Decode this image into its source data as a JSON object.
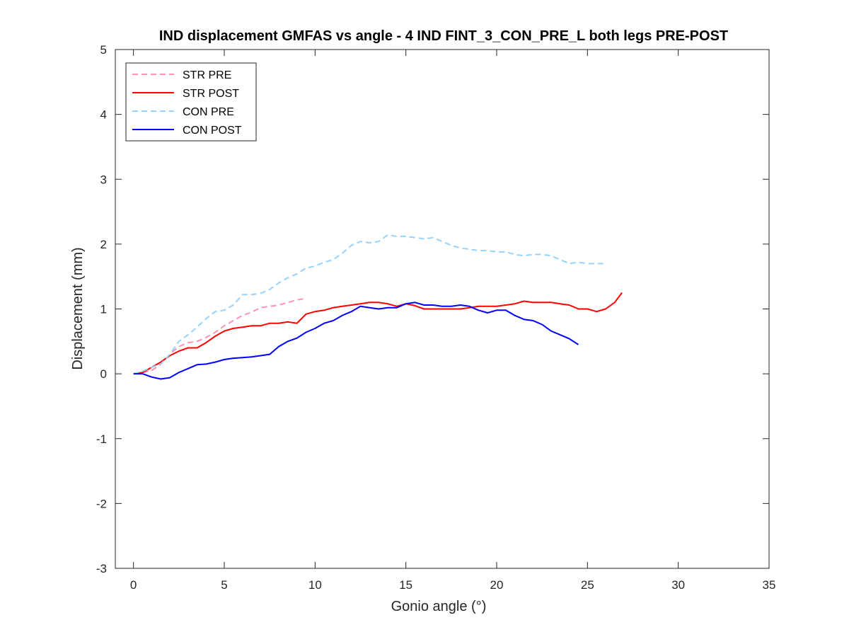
{
  "chart_data": {
    "type": "line",
    "title": "IND displacement GMFAS vs angle - 4 IND FINT_3_CON_PRE_L both legs PRE-POST",
    "xlabel": "Gonio angle (°)",
    "ylabel": "Displacement (mm)",
    "xlim": [
      -1,
      35
    ],
    "ylim": [
      -3,
      5
    ],
    "xticks": [
      0,
      5,
      10,
      15,
      20,
      25,
      30,
      35
    ],
    "yticks": [
      -3,
      -2,
      -1,
      0,
      1,
      2,
      3,
      4,
      5
    ],
    "xtick_labels": [
      "0",
      "5",
      "10",
      "15",
      "20",
      "25",
      "30",
      "35"
    ],
    "ytick_labels": [
      "-3",
      "-2",
      "-1",
      "0",
      "1",
      "2",
      "3",
      "4",
      "5"
    ],
    "grid": false,
    "legend_position": "top-left",
    "series": [
      {
        "name": "STR PRE",
        "color": "#ff91b4",
        "dash": true,
        "x": [
          0,
          0.5,
          1.0,
          1.5,
          2.0,
          2.5,
          3.0,
          3.5,
          4.0,
          4.5,
          5.0,
          5.5,
          6.0,
          6.5,
          7.0,
          7.5,
          8.0,
          8.5,
          9.0,
          9.5
        ],
        "y": [
          0,
          0.02,
          0.05,
          0.15,
          0.3,
          0.42,
          0.48,
          0.5,
          0.56,
          0.64,
          0.74,
          0.82,
          0.9,
          0.95,
          1.02,
          1.04,
          1.06,
          1.1,
          1.14,
          1.16
        ]
      },
      {
        "name": "STR POST",
        "color": "#ff0000",
        "dash": false,
        "x": [
          0,
          0.5,
          1.0,
          1.5,
          2.0,
          2.5,
          3.0,
          3.5,
          4.0,
          4.5,
          5.0,
          5.5,
          6.0,
          6.5,
          7.0,
          7.5,
          8.0,
          8.5,
          9.0,
          9.5,
          10.0,
          10.5,
          11.0,
          11.5,
          12.0,
          12.5,
          13.0,
          13.5,
          14.0,
          14.5,
          15.0,
          15.5,
          16.0,
          16.5,
          17.0,
          17.5,
          18.0,
          18.5,
          19.0,
          19.5,
          20.0,
          20.5,
          21.0,
          21.5,
          22.0,
          22.5,
          23.0,
          23.5,
          24.0,
          24.5,
          25.0,
          25.5,
          26.0,
          26.5,
          26.9
        ],
        "y": [
          0,
          0.02,
          0.1,
          0.18,
          0.28,
          0.35,
          0.4,
          0.4,
          0.48,
          0.58,
          0.66,
          0.7,
          0.72,
          0.74,
          0.74,
          0.78,
          0.78,
          0.8,
          0.78,
          0.92,
          0.96,
          0.98,
          1.02,
          1.04,
          1.06,
          1.08,
          1.1,
          1.1,
          1.08,
          1.04,
          1.08,
          1.05,
          1.0,
          1.0,
          1.0,
          1.0,
          1.0,
          1.02,
          1.04,
          1.04,
          1.04,
          1.06,
          1.08,
          1.12,
          1.1,
          1.1,
          1.1,
          1.08,
          1.06,
          1.0,
          1.0,
          0.96,
          1.0,
          1.1,
          1.25
        ]
      },
      {
        "name": "CON PRE",
        "color": "#96d2ff",
        "dash": true,
        "x": [
          0,
          0.5,
          1.0,
          1.5,
          2.0,
          2.5,
          3.0,
          3.5,
          4.0,
          4.5,
          5.0,
          5.5,
          6.0,
          6.5,
          7.0,
          7.5,
          8.0,
          8.5,
          9.0,
          9.5,
          10.0,
          10.5,
          11.0,
          11.5,
          12.0,
          12.5,
          13.0,
          13.5,
          14.0,
          14.5,
          15.0,
          15.5,
          16.0,
          16.5,
          17.0,
          17.5,
          18.0,
          18.5,
          19.0,
          19.5,
          20.0,
          20.5,
          21.0,
          21.5,
          22.0,
          22.5,
          23.0,
          23.5,
          24.0,
          24.5,
          25.0,
          25.5,
          26.0
        ],
        "y": [
          0,
          0.04,
          0.1,
          0.15,
          0.3,
          0.5,
          0.6,
          0.72,
          0.85,
          0.96,
          0.98,
          1.06,
          1.22,
          1.22,
          1.24,
          1.3,
          1.4,
          1.48,
          1.54,
          1.63,
          1.66,
          1.72,
          1.76,
          1.86,
          1.98,
          2.04,
          2.02,
          2.04,
          2.14,
          2.12,
          2.12,
          2.1,
          2.08,
          2.1,
          2.04,
          1.98,
          1.94,
          1.92,
          1.9,
          1.9,
          1.88,
          1.88,
          1.84,
          1.82,
          1.84,
          1.84,
          1.82,
          1.76,
          1.7,
          1.72,
          1.7,
          1.7,
          1.7
        ]
      },
      {
        "name": "CON POST",
        "color": "#0000ff",
        "dash": false,
        "x": [
          0,
          0.5,
          1.0,
          1.5,
          2.0,
          2.5,
          3.0,
          3.5,
          4.0,
          4.5,
          5.0,
          5.5,
          6.0,
          6.5,
          7.0,
          7.5,
          8.0,
          8.5,
          9.0,
          9.5,
          10.0,
          10.5,
          11.0,
          11.5,
          12.0,
          12.5,
          13.0,
          13.5,
          14.0,
          14.5,
          15.0,
          15.5,
          16.0,
          16.5,
          17.0,
          17.5,
          18.0,
          18.5,
          19.0,
          19.5,
          20.0,
          20.5,
          21.0,
          21.5,
          22.0,
          22.5,
          23.0,
          23.5,
          24.0,
          24.5
        ],
        "y": [
          0,
          0.0,
          -0.05,
          -0.08,
          -0.06,
          0.02,
          0.08,
          0.14,
          0.15,
          0.18,
          0.22,
          0.24,
          0.25,
          0.26,
          0.28,
          0.3,
          0.42,
          0.5,
          0.55,
          0.64,
          0.7,
          0.78,
          0.82,
          0.9,
          0.96,
          1.04,
          1.02,
          1.0,
          1.02,
          1.02,
          1.08,
          1.1,
          1.06,
          1.06,
          1.04,
          1.04,
          1.06,
          1.04,
          0.98,
          0.94,
          0.98,
          0.98,
          0.9,
          0.84,
          0.82,
          0.76,
          0.66,
          0.6,
          0.54,
          0.45
        ]
      }
    ]
  }
}
